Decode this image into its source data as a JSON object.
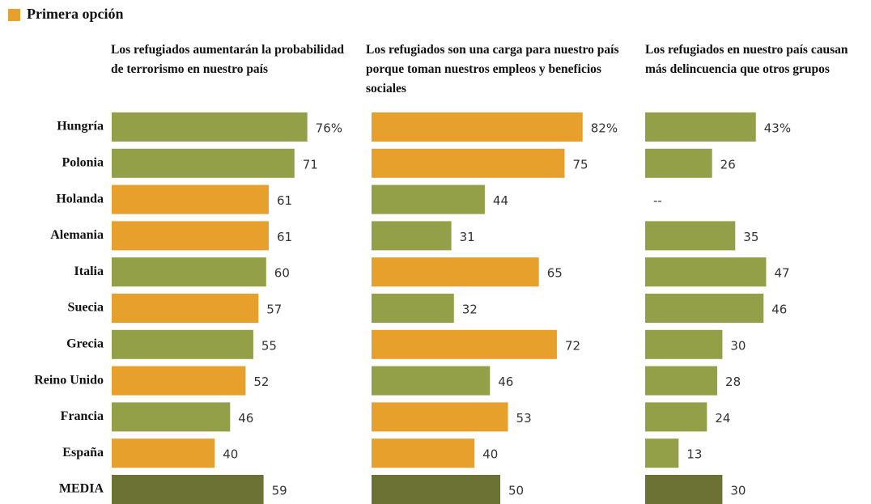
{
  "legend": {
    "label": "Primera opción",
    "color": "#e8a02c"
  },
  "chart_data": [
    {
      "type": "bar",
      "title": "Los refugiados aumentarán la probabilidad de terrorismo en nuestro país",
      "categories": [
        "Hungría",
        "Polonia",
        "Holanda",
        "Alemania",
        "Italia",
        "Suecia",
        "Grecia",
        "Reino Unido",
        "Francia",
        "España",
        "MEDIA"
      ],
      "values": [
        76,
        71,
        61,
        61,
        60,
        57,
        55,
        52,
        46,
        40,
        59
      ],
      "value_labels": [
        "76%",
        "71",
        "61",
        "61",
        "60",
        "57",
        "55",
        "52",
        "46",
        "40",
        "59"
      ],
      "colors": [
        "#94a047",
        "#94a047",
        "#e8a02c",
        "#e8a02c",
        "#94a047",
        "#e8a02c",
        "#94a047",
        "#e8a02c",
        "#94a047",
        "#e8a02c",
        "#6b7234"
      ]
    },
    {
      "type": "bar",
      "title": "Los refugiados son una carga para nuestro país porque toman nuestros empleos y beneficios sociales",
      "values": [
        82,
        75,
        44,
        31,
        65,
        32,
        72,
        46,
        53,
        40,
        50
      ],
      "value_labels": [
        "82%",
        "75",
        "44",
        "31",
        "65",
        "32",
        "72",
        "46",
        "53",
        "40",
        "50"
      ],
      "colors": [
        "#e8a02c",
        "#e8a02c",
        "#94a047",
        "#94a047",
        "#e8a02c",
        "#94a047",
        "#e8a02c",
        "#94a047",
        "#e8a02c",
        "#e8a02c",
        "#6b7234"
      ]
    },
    {
      "type": "bar",
      "title": "Los refugiados en nuestro país causan más delincuencia que otros grupos",
      "values": [
        43,
        26,
        null,
        35,
        47,
        46,
        30,
        28,
        24,
        13,
        30
      ],
      "value_labels": [
        "43%",
        "26",
        "--",
        "35",
        "47",
        "46",
        "30",
        "28",
        "24",
        "13",
        "30"
      ],
      "colors": [
        "#94a047",
        "#94a047",
        null,
        "#94a047",
        "#94a047",
        "#94a047",
        "#94a047",
        "#94a047",
        "#94a047",
        "#94a047",
        "#6b7234"
      ]
    }
  ]
}
